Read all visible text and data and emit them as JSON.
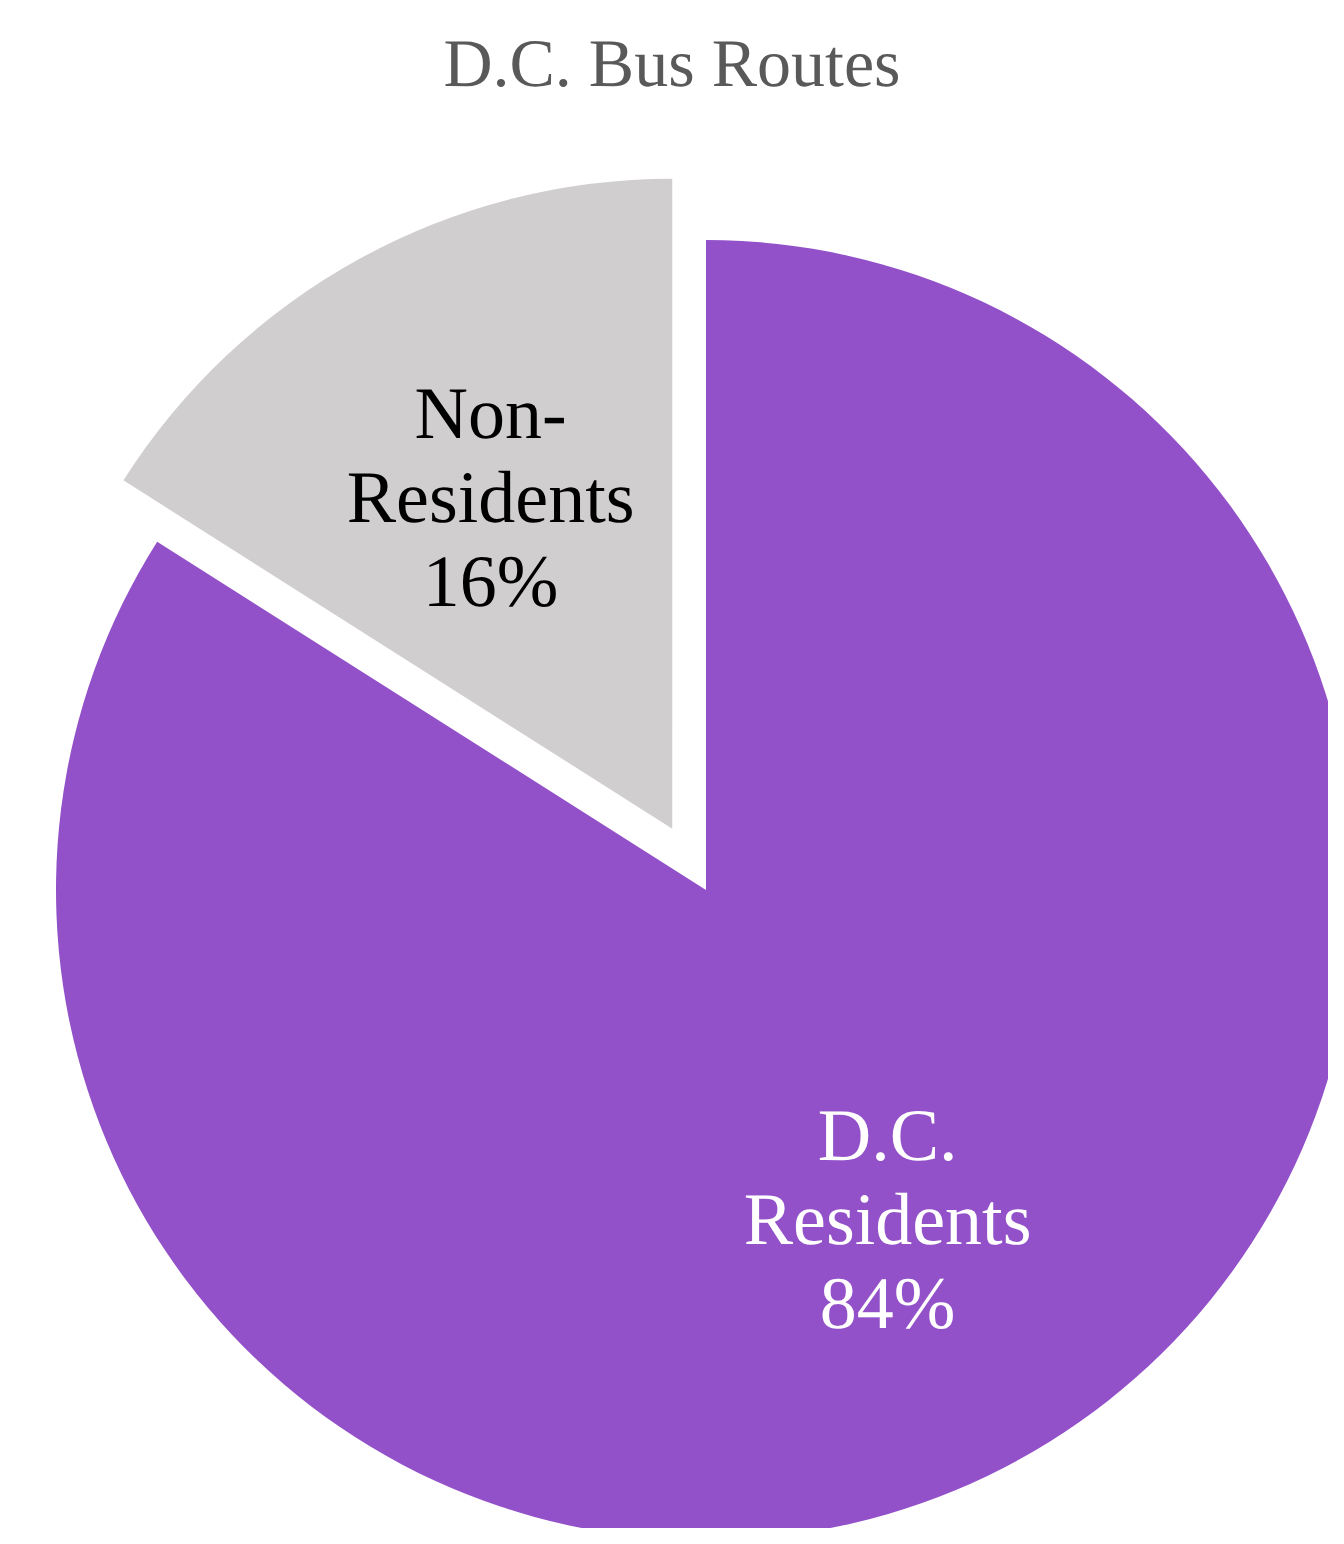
{
  "chart_data": {
    "type": "pie",
    "title": "D.C. Bus Routes",
    "categories": [
      "D.C. Residents",
      "Non-Residents"
    ],
    "values": [
      84,
      16
    ],
    "colors": [
      "#9351c9",
      "#d0cecf"
    ],
    "value_labels": [
      "84%",
      "16%"
    ]
  }
}
